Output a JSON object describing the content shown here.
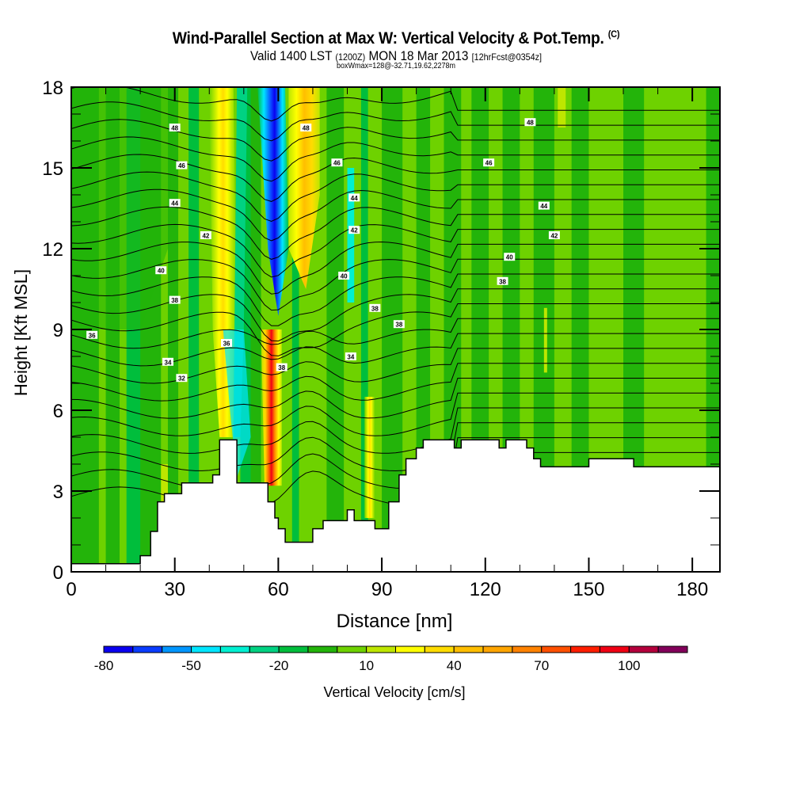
{
  "title": {
    "main": "Wind-Parallel Section at Max W: Vertical Velocity & Pot.Temp.",
    "copyright": "(C)",
    "valid_prefix": "Valid 1400 LST",
    "valid_utc": "(1200Z)",
    "valid_date": "MON 18 Mar 2013",
    "forecast": "[12hrFcst@0354z]",
    "box_info": "boxWmax=128@-32.71,19.62,2278m"
  },
  "chart_data": {
    "type": "heatmap",
    "title": "Wind-Parallel Section at Max W: Vertical Velocity & Pot.Temp.",
    "xlabel": "Distance [nm]",
    "ylabel": "Height [Kft MSL]",
    "xlim": [
      0,
      188
    ],
    "ylim": [
      0,
      18
    ],
    "x_ticks": [
      "0",
      "30",
      "60",
      "90",
      "120",
      "150",
      "180"
    ],
    "y_ticks": [
      "0",
      "3",
      "6",
      "9",
      "12",
      "15",
      "18"
    ],
    "colorbar": {
      "label": "Vertical Velocity [cm/s]",
      "tick_labels": [
        "-80",
        "-50",
        "-20",
        "10",
        "40",
        "70",
        "100"
      ],
      "colors": [
        "#0a00f0",
        "#0a3cff",
        "#0096ff",
        "#00e6ff",
        "#00f0d2",
        "#00d282",
        "#00be3c",
        "#23b40a",
        "#6ed200",
        "#bee600",
        "#ffff00",
        "#ffdc00",
        "#ffbe00",
        "#ffa500",
        "#ff8200",
        "#ff5000",
        "#ff1e00",
        "#f00014",
        "#b4003c",
        "#82005a"
      ]
    },
    "contour_field": "Potential Temperature",
    "contour_labels": [
      "32",
      "34",
      "36",
      "38",
      "40",
      "42",
      "44",
      "46",
      "48"
    ],
    "terrain_profile": [
      [
        0,
        0.3
      ],
      [
        20,
        0.3
      ],
      [
        20,
        0.6
      ],
      [
        23,
        0.6
      ],
      [
        23,
        1.5
      ],
      [
        25,
        1.5
      ],
      [
        25,
        2.6
      ],
      [
        27,
        2.6
      ],
      [
        27,
        2.9
      ],
      [
        32,
        2.9
      ],
      [
        32,
        3.3
      ],
      [
        41,
        3.3
      ],
      [
        41,
        3.6
      ],
      [
        43,
        3.6
      ],
      [
        43,
        4.9
      ],
      [
        48,
        4.9
      ],
      [
        48,
        3.3
      ],
      [
        57,
        3.3
      ],
      [
        57,
        2.6
      ],
      [
        59,
        2.6
      ],
      [
        59,
        2.0
      ],
      [
        60,
        2.0
      ],
      [
        60,
        1.6
      ],
      [
        62,
        1.6
      ],
      [
        62,
        1.1
      ],
      [
        70,
        1.1
      ],
      [
        70,
        1.6
      ],
      [
        73,
        1.6
      ],
      [
        73,
        1.9
      ],
      [
        80,
        1.9
      ],
      [
        80,
        2.3
      ],
      [
        82,
        2.3
      ],
      [
        82,
        1.9
      ],
      [
        88,
        1.9
      ],
      [
        88,
        1.6
      ],
      [
        92,
        1.6
      ],
      [
        92,
        2.6
      ],
      [
        95,
        2.6
      ],
      [
        95,
        3.6
      ],
      [
        97,
        3.6
      ],
      [
        97,
        4.2
      ],
      [
        100,
        4.2
      ],
      [
        100,
        4.6
      ],
      [
        102,
        4.6
      ],
      [
        102,
        4.9
      ],
      [
        111,
        4.9
      ],
      [
        111,
        4.6
      ],
      [
        113,
        4.6
      ],
      [
        113,
        4.9
      ],
      [
        124,
        4.9
      ],
      [
        124,
        4.6
      ],
      [
        126,
        4.6
      ],
      [
        126,
        4.9
      ],
      [
        132,
        4.9
      ],
      [
        132,
        4.6
      ],
      [
        134,
        4.6
      ],
      [
        134,
        4.2
      ],
      [
        136,
        4.2
      ],
      [
        136,
        3.9
      ],
      [
        150,
        3.9
      ],
      [
        150,
        4.2
      ],
      [
        163,
        4.2
      ],
      [
        163,
        3.9
      ],
      [
        188,
        3.9
      ]
    ],
    "velocity_features": [
      {
        "name": "downdraft core",
        "x": 59,
        "z_range": [
          9,
          18
        ],
        "value": -75
      },
      {
        "name": "updraft upper",
        "x": 68,
        "z_range": [
          9,
          18
        ],
        "value": 45
      },
      {
        "name": "updraft core",
        "x": 58,
        "z_range": [
          2.5,
          9
        ],
        "value": 100
      },
      {
        "name": "updraft left",
        "x": 45,
        "z_range": [
          4,
          18
        ],
        "value": 35
      },
      {
        "name": "updraft right",
        "x": 86,
        "z_range": [
          2,
          6
        ],
        "value": 25
      }
    ],
    "labeled_contours": [
      {
        "label": "48",
        "x": 30,
        "z": 16.5
      },
      {
        "label": "46",
        "x": 32,
        "z": 15.1
      },
      {
        "label": "44",
        "x": 30,
        "z": 13.7
      },
      {
        "label": "42",
        "x": 39,
        "z": 12.5
      },
      {
        "label": "40",
        "x": 26,
        "z": 11.2
      },
      {
        "label": "38",
        "x": 30,
        "z": 10.1
      },
      {
        "label": "36",
        "x": 6,
        "z": 8.8
      },
      {
        "label": "36",
        "x": 45,
        "z": 8.5
      },
      {
        "label": "34",
        "x": 28,
        "z": 7.8
      },
      {
        "label": "32",
        "x": 32,
        "z": 7.2
      },
      {
        "label": "38",
        "x": 61,
        "z": 7.6
      },
      {
        "label": "48",
        "x": 68,
        "z": 16.5
      },
      {
        "label": "46",
        "x": 77,
        "z": 15.2
      },
      {
        "label": "44",
        "x": 82,
        "z": 13.9
      },
      {
        "label": "42",
        "x": 82,
        "z": 12.7
      },
      {
        "label": "40",
        "x": 79,
        "z": 11.0
      },
      {
        "label": "38",
        "x": 88,
        "z": 9.8
      },
      {
        "label": "38",
        "x": 95,
        "z": 9.2
      },
      {
        "label": "34",
        "x": 81,
        "z": 8.0
      },
      {
        "label": "48",
        "x": 133,
        "z": 16.7
      },
      {
        "label": "46",
        "x": 121,
        "z": 15.2
      },
      {
        "label": "44",
        "x": 137,
        "z": 13.6
      },
      {
        "label": "42",
        "x": 140,
        "z": 12.5
      },
      {
        "label": "40",
        "x": 127,
        "z": 11.7
      },
      {
        "label": "38",
        "x": 125,
        "z": 10.8
      }
    ]
  }
}
